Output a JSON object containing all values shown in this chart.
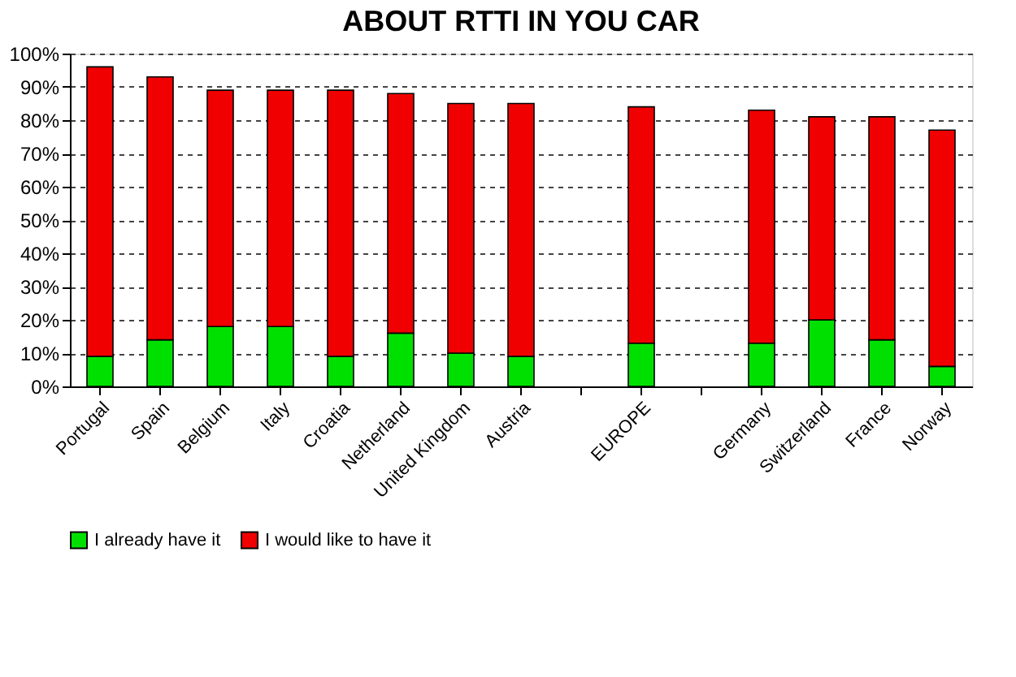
{
  "chart_data": {
    "type": "bar",
    "title": "ABOUT RTTI  IN YOU CAR",
    "stacked": true,
    "categories": [
      "Portugal",
      "Spain",
      "Belgium",
      "Italy",
      "Croatia",
      "Netherland",
      "United Kingdom",
      "Austria",
      null,
      "EUROPE",
      null,
      "Germany",
      "Switzerland",
      "France",
      "Norway"
    ],
    "series": [
      {
        "name": "I already have it",
        "color": "#00e000",
        "values": [
          9,
          14,
          18,
          18,
          9,
          16,
          10,
          9,
          null,
          13,
          null,
          13,
          20,
          14,
          6
        ]
      },
      {
        "name": "I would like to have it",
        "color": "#f00000",
        "values": [
          87,
          79,
          71,
          71,
          80,
          72,
          75,
          76,
          null,
          71,
          null,
          70,
          61,
          67,
          71
        ]
      }
    ],
    "ylim": [
      0,
      100
    ],
    "yticks": [
      {
        "value": 0,
        "label": "0%"
      },
      {
        "value": 10,
        "label": "10%"
      },
      {
        "value": 20,
        "label": "20%"
      },
      {
        "value": 30,
        "label": "30%"
      },
      {
        "value": 40,
        "label": "40%"
      },
      {
        "value": 50,
        "label": "50%"
      },
      {
        "value": 60,
        "label": "60%"
      },
      {
        "value": 70,
        "label": "70%"
      },
      {
        "value": 80,
        "label": "80%"
      },
      {
        "value": 90,
        "label": "90%"
      },
      {
        "value": 100,
        "label": "100%"
      }
    ],
    "grid": "y",
    "legend": "bottom"
  }
}
